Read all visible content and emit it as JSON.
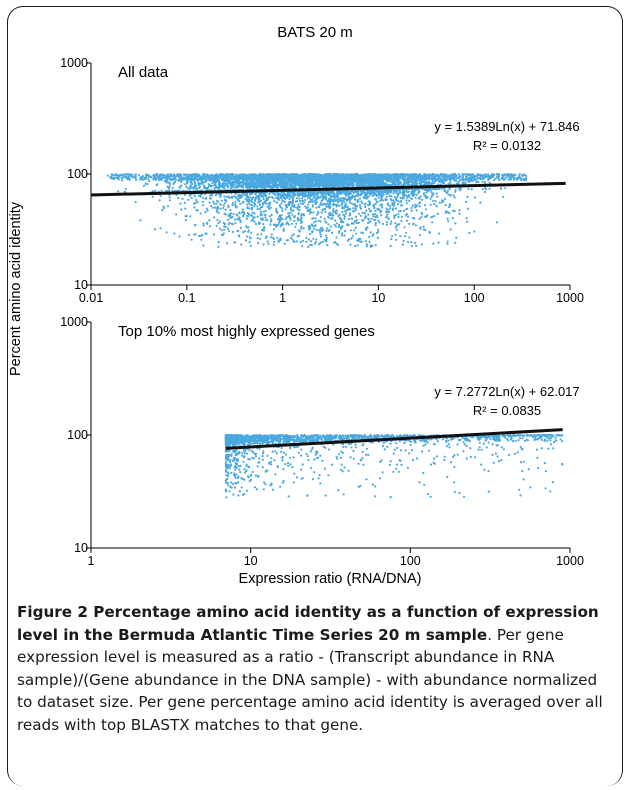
{
  "figure_title": "BATS 20 m",
  "ylabel": "Percent amino acid identity",
  "xlabel": "Expression ratio (RNA/DNA)",
  "point_color": "#4aa8e0",
  "chart_data": [
    {
      "type": "scatter",
      "title": "All data",
      "xscale": "log",
      "yscale": "log",
      "xlim": [
        0.01,
        1000
      ],
      "ylim": [
        10,
        1000
      ],
      "xticks": [
        "0.01",
        "0.1",
        "1",
        "10",
        "100",
        "1000"
      ],
      "yticks": [
        "10",
        "100",
        "1000"
      ],
      "equation": "y = 1.5389Ln(x) + 71.846",
      "r2": "R² = 0.0132",
      "trendline": {
        "a": 1.5389,
        "b": 71.846,
        "x_range": [
          0.01,
          900
        ]
      },
      "cloud": {
        "x_range": [
          0.015,
          350
        ],
        "y_top": 100,
        "y_median": 72,
        "y_floor": 22
      }
    },
    {
      "type": "scatter",
      "title": "Top 10% most highly expressed genes",
      "xscale": "log",
      "yscale": "log",
      "xlim": [
        1,
        1000
      ],
      "ylim": [
        10,
        1000
      ],
      "xticks": [
        "1",
        "10",
        "100",
        "1000"
      ],
      "yticks": [
        "10",
        "100",
        "1000"
      ],
      "equation": "y = 7.2772Ln(x) + 62.017",
      "r2": "R² = 0.0835",
      "trendline": {
        "a": 7.2772,
        "b": 62.017,
        "x_range": [
          7,
          900
        ]
      },
      "cloud": {
        "x_range": [
          7,
          900
        ],
        "y_top": 100,
        "y_median": 85,
        "y_floor": 28
      }
    }
  ],
  "caption": {
    "bold": "Figure 2 Percentage amino acid identity as a function of expression level in the Bermuda Atlantic Time Series 20 m sample",
    "text": ". Per gene expression level is measured as a ratio - (Transcript abundance in RNA sample)/(Gene abundance in the DNA sample) - with abundance normalized to dataset size. Per gene percentage amino acid identity is averaged over all reads with top BLASTX matches to that gene."
  }
}
